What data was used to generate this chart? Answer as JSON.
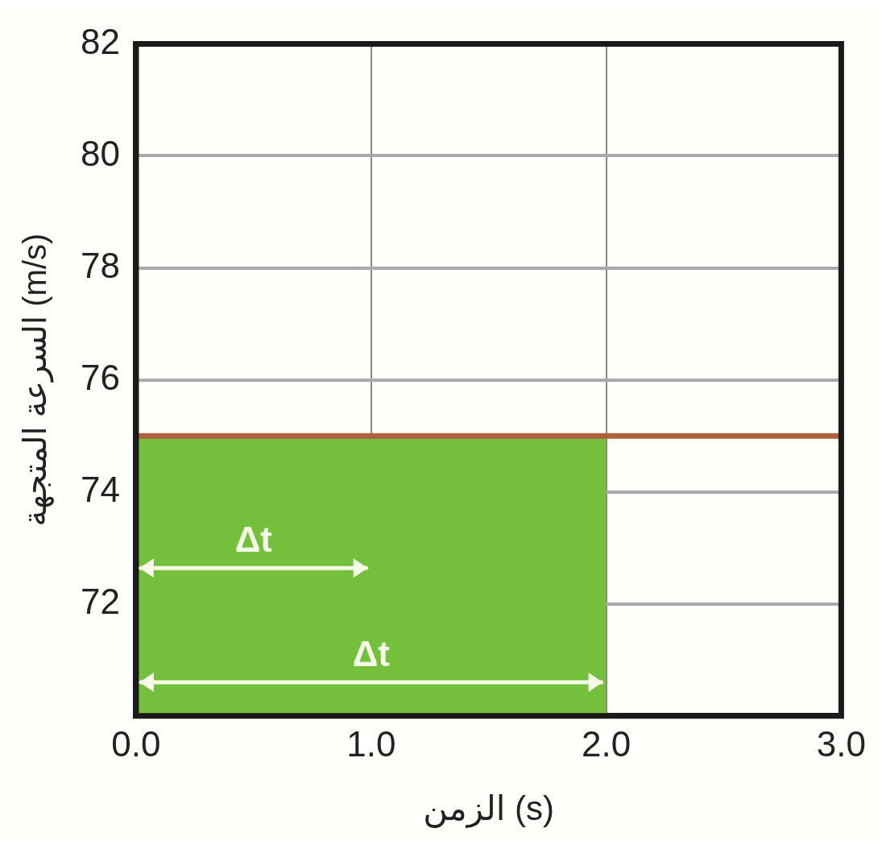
{
  "chart_data": {
    "type": "line",
    "xlabel": "الزمن (s)",
    "ylabel": "السرعة المتجهة (m/s)",
    "xlim": [
      0,
      3
    ],
    "xticks": [
      {
        "value": 0,
        "label": "0.0"
      },
      {
        "value": 1,
        "label": "1.0"
      },
      {
        "value": 2,
        "label": "2.0"
      },
      {
        "value": 3,
        "label": "3.0"
      }
    ],
    "ylim": [
      70,
      82
    ],
    "yticks": [
      72,
      74,
      76,
      78,
      80,
      82
    ],
    "series": [
      {
        "type": "area",
        "x": [
          0,
          2
        ],
        "values": [
          75,
          75
        ],
        "color": "#74bf3c"
      },
      {
        "type": "line",
        "x": [
          0,
          3
        ],
        "values": [
          75,
          75
        ],
        "color": "#b0603c"
      }
    ],
    "annotations": [
      "Δt",
      "Δt"
    ],
    "grid": true,
    "legend": false,
    "marker": "none",
    "line_style": "solid"
  }
}
